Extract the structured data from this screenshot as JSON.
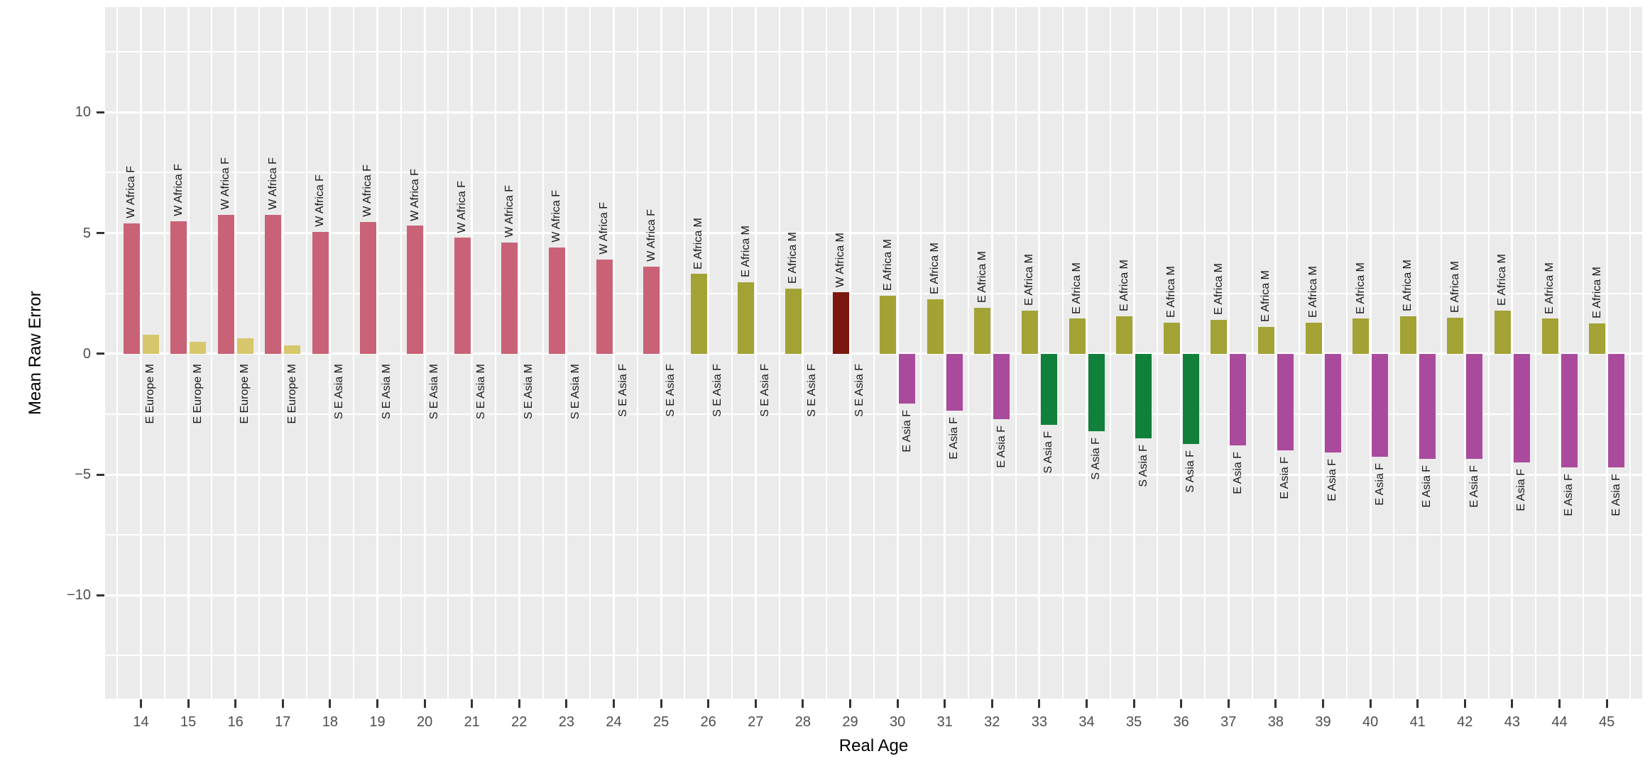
{
  "chart_data": {
    "type": "bar",
    "title": "",
    "xlabel": "Real Age",
    "ylabel": "Mean Raw Error",
    "legend": false,
    "grid": true,
    "panel_bg": "#ebebeb",
    "grid_color": "#ffffff",
    "xlim": [
      13.25,
      45.76
    ],
    "ylim": [
      -14.3,
      14.36
    ],
    "x_ticks": [
      14,
      15,
      16,
      17,
      18,
      19,
      20,
      21,
      22,
      23,
      24,
      25,
      26,
      27,
      28,
      29,
      30,
      31,
      32,
      33,
      34,
      35,
      36,
      37,
      38,
      39,
      40,
      41,
      42,
      43,
      44,
      45
    ],
    "y_ticks": [
      {
        "v": 10,
        "label": "10"
      },
      {
        "v": 5,
        "label": "5"
      },
      {
        "v": 0,
        "label": "0"
      },
      {
        "v": -5,
        "label": "−5"
      },
      {
        "v": -10,
        "label": "−10"
      }
    ],
    "y_minor": [
      12.5,
      7.5,
      2.5,
      -2.5,
      -7.5,
      -12.5
    ],
    "group_colors": {
      "W Africa F": "#c96277",
      "E Europe M": "#d6c76b",
      "E Africa M": "#a2a334",
      "W Africa M": "#7b170e",
      "E Asia F": "#aa4a9d",
      "S Asia F": "#11803a"
    },
    "bars": [
      {
        "age": 14,
        "positive": {
          "label": "W Africa F",
          "value": 5.4
        },
        "negative": {
          "label": "E Europe M",
          "value": 0.8
        }
      },
      {
        "age": 15,
        "positive": {
          "label": "W Africa F",
          "value": 5.5
        },
        "negative": {
          "label": "E Europe M",
          "value": 0.5
        }
      },
      {
        "age": 16,
        "positive": {
          "label": "W Africa F",
          "value": 5.75
        },
        "negative": {
          "label": "E Europe M",
          "value": 0.65
        }
      },
      {
        "age": 17,
        "positive": {
          "label": "W Africa F",
          "value": 5.75
        },
        "negative": {
          "label": "E Europe M",
          "value": 0.35
        }
      },
      {
        "age": 18,
        "positive": {
          "label": "W Africa F",
          "value": 5.05
        },
        "negative": {
          "label": "S E Asia M",
          "value": 0
        }
      },
      {
        "age": 19,
        "positive": {
          "label": "W Africa F",
          "value": 5.45
        },
        "negative": {
          "label": "S E Asia M",
          "value": 0
        }
      },
      {
        "age": 20,
        "positive": {
          "label": "W Africa F",
          "value": 5.3
        },
        "negative": {
          "label": "S E Asia M",
          "value": 0
        }
      },
      {
        "age": 21,
        "positive": {
          "label": "W Africa F",
          "value": 4.8
        },
        "negative": {
          "label": "S E Asia M",
          "value": 0
        }
      },
      {
        "age": 22,
        "positive": {
          "label": "W Africa F",
          "value": 4.6
        },
        "negative": {
          "label": "S E Asia M",
          "value": 0
        }
      },
      {
        "age": 23,
        "positive": {
          "label": "W Africa F",
          "value": 4.4
        },
        "negative": {
          "label": "S E Asia M",
          "value": 0
        }
      },
      {
        "age": 24,
        "positive": {
          "label": "W Africa F",
          "value": 3.9
        },
        "negative": {
          "label": "S E Asia F",
          "value": 0
        }
      },
      {
        "age": 25,
        "positive": {
          "label": "W Africa F",
          "value": 3.6
        },
        "negative": {
          "label": "S E Asia F",
          "value": 0
        }
      },
      {
        "age": 26,
        "positive": {
          "label": "E Africa M",
          "value": 3.3
        },
        "negative": {
          "label": "S E Asia F",
          "value": 0
        }
      },
      {
        "age": 27,
        "positive": {
          "label": "E Africa M",
          "value": 2.95
        },
        "negative": {
          "label": "S E Asia F",
          "value": 0
        }
      },
      {
        "age": 28,
        "positive": {
          "label": "E Africa M",
          "value": 2.7
        },
        "negative": {
          "label": "S E Asia F",
          "value": 0
        }
      },
      {
        "age": 29,
        "positive": {
          "label": "W Africa M",
          "value": 2.55
        },
        "negative": {
          "label": "S E Asia F",
          "value": 0
        }
      },
      {
        "age": 30,
        "positive": {
          "label": "E Africa M",
          "value": 2.4
        },
        "negative": {
          "label": "E Asia F",
          "value": -2.05
        }
      },
      {
        "age": 31,
        "positive": {
          "label": "E Africa M",
          "value": 2.25
        },
        "negative": {
          "label": "E Asia F",
          "value": -2.35
        }
      },
      {
        "age": 32,
        "positive": {
          "label": "E Africa M",
          "value": 1.9
        },
        "negative": {
          "label": "E Asia F",
          "value": -2.7
        }
      },
      {
        "age": 33,
        "positive": {
          "label": "E Africa M",
          "value": 1.8
        },
        "negative": {
          "label": "S Asia F",
          "value": -2.95
        }
      },
      {
        "age": 34,
        "positive": {
          "label": "E Africa M",
          "value": 1.45
        },
        "negative": {
          "label": "S Asia F",
          "value": -3.2
        }
      },
      {
        "age": 35,
        "positive": {
          "label": "E Africa M",
          "value": 1.55
        },
        "negative": {
          "label": "S Asia F",
          "value": -3.5
        }
      },
      {
        "age": 36,
        "positive": {
          "label": "E Africa M",
          "value": 1.3
        },
        "negative": {
          "label": "S Asia F",
          "value": -3.75
        }
      },
      {
        "age": 37,
        "positive": {
          "label": "E Africa M",
          "value": 1.4
        },
        "negative": {
          "label": "E Asia F",
          "value": -3.8
        }
      },
      {
        "age": 38,
        "positive": {
          "label": "E Africa M",
          "value": 1.1
        },
        "negative": {
          "label": "E Asia F",
          "value": -4.0
        }
      },
      {
        "age": 39,
        "positive": {
          "label": "E Africa M",
          "value": 1.3
        },
        "negative": {
          "label": "E Asia F",
          "value": -4.1
        }
      },
      {
        "age": 40,
        "positive": {
          "label": "E Africa M",
          "value": 1.45
        },
        "negative": {
          "label": "E Asia F",
          "value": -4.25
        }
      },
      {
        "age": 41,
        "positive": {
          "label": "E Africa M",
          "value": 1.55
        },
        "negative": {
          "label": "E Asia F",
          "value": -4.35
        }
      },
      {
        "age": 42,
        "positive": {
          "label": "E Africa M",
          "value": 1.5
        },
        "negative": {
          "label": "E Asia F",
          "value": -4.35
        }
      },
      {
        "age": 43,
        "positive": {
          "label": "E Africa M",
          "value": 1.8
        },
        "negative": {
          "label": "E Asia F",
          "value": -4.5
        }
      },
      {
        "age": 44,
        "positive": {
          "label": "E Africa M",
          "value": 1.45
        },
        "negative": {
          "label": "E Asia F",
          "value": -4.7
        }
      },
      {
        "age": 45,
        "positive": {
          "label": "E Africa M",
          "value": 1.25
        },
        "negative": {
          "label": "E Asia F",
          "value": -4.7
        }
      }
    ]
  }
}
